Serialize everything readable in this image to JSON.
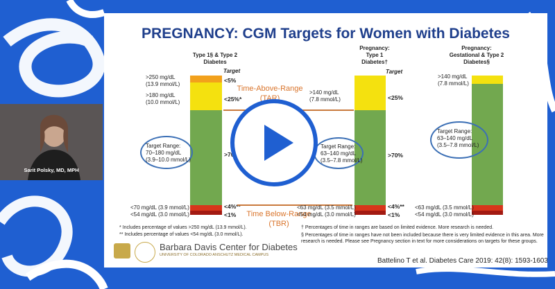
{
  "slide": {
    "title": "PREGNANCY: CGM Targets for Women with Diabetes",
    "col1_header": "Type 1§ & Type 2\nDiabetes",
    "col2_header": "Pregnancy:\nType 1\nDiabetes†",
    "col3_header": "Pregnancy:\nGestational & Type 2\nDiabetes§",
    "target_label": "Target",
    "col1": {
      "l1": ">250 mg/dL\n(13.9 mmol/L)",
      "l2": ">180 mg/dL\n(10.0 mmol/L)",
      "range": "Target Range:\n70–180 mg/dL\n(3.9–10.0 mmol/L)",
      "l4": "<70 mg/dL (3.9 mmol/L)",
      "l5": "<54 mg/dL (3.0 mmol/L)",
      "t1": "<5%",
      "t2": "<25%*",
      "t3": ">70%",
      "t4": "<4%**",
      "t5": "<1%"
    },
    "col2": {
      "l1": ">140 mg/dL\n(7.8 mmol/L)",
      "range": "Target Range:\n63–140 mg/dL\n(3.5–7.8 mmol/L)",
      "l4": "<63 mg/dL (3.5 mmol/L)",
      "l5": "<54 mg/dL (3.0 mmol/L)",
      "t1": "<25%",
      "t2": ">70%",
      "t3": "<4%**",
      "t4": "<1%"
    },
    "col3": {
      "l1": ">140 mg/dL\n(7.8 mmol/L)",
      "range": "Target Range:\n63–140 mg/dL\n(3.5–7.8 mmol/L)",
      "l4": "<63 mg/dL (3.5 mmol/L)",
      "l5": "<54 mg/dL (3.0 mmol/L)"
    },
    "tar_label": "Time-Above-Range\n(TAR)",
    "tbr_label": "Time Below-Range\n(TBR)",
    "footnote1": "* Includes percentage of values >250 mg/dL (13.9 mmol/L).",
    "footnote2": "** Includes percentage of values <54 mg/dL (3.0 mmol/L).",
    "note_dagger": "† Percentages of time in ranges are based on limited evidence. More research is needed.",
    "note_section": "§ Percentages of time in ranges have not been included because there is very limited evidence in this area. More\n   research is needed. Please see Pregnancy section in text for more considerations on targets for these groups.",
    "logo_name": "Barbara Davis Center for Diabetes",
    "logo_sub": "UNIVERSITY OF COLORADO ANSCHUTZ MEDICAL CAMPUS",
    "citation": "Battelino T et al. Diabetes Care 2019: 42(8): 1593-1603."
  },
  "video": {
    "name": "Sarit Polsky, MD, MPH"
  },
  "colors": {
    "green": "#72a84f",
    "yellow": "#f4e10f",
    "orange": "#f2a11c",
    "red": "#d7361b",
    "darkred": "#a31a12",
    "brand_blue": "#1f5fd1",
    "title_blue": "#1f3f8c",
    "accent_orange": "#d9742b"
  }
}
